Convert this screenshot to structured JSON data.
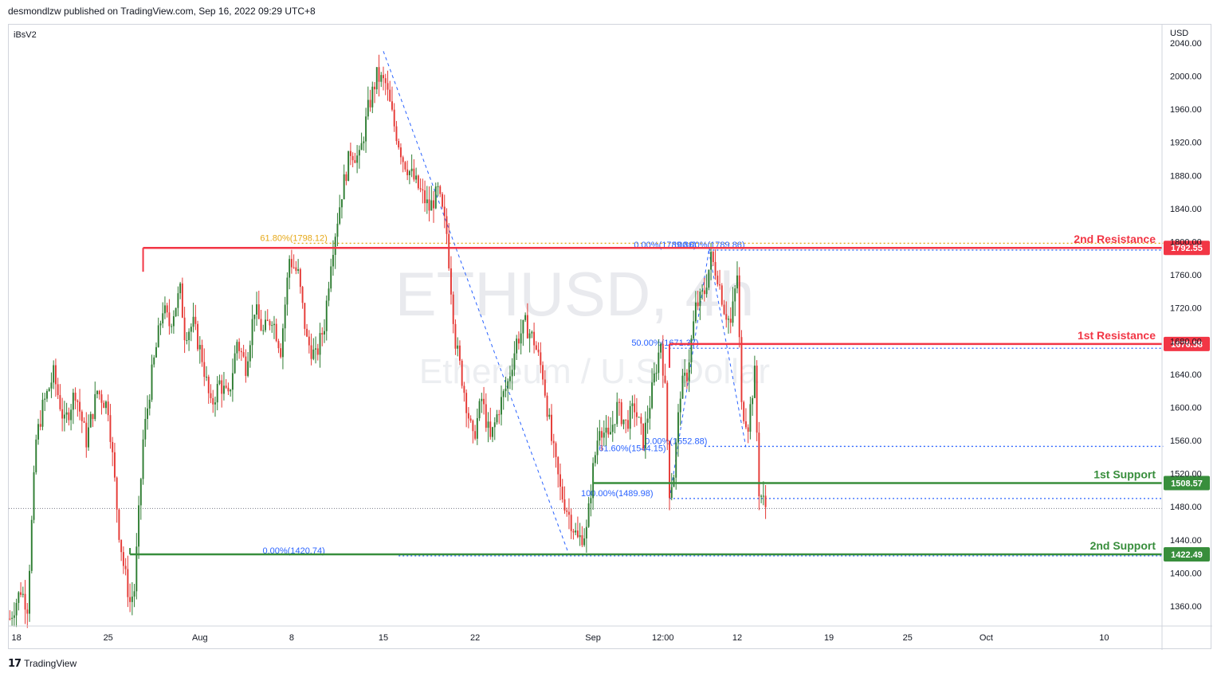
{
  "header": {
    "publisher_line": "desmondlzw published on TradingView.com, Sep 16, 2022 09:29 UTC+8"
  },
  "footer": {
    "brand": "TradingView",
    "logo_icon": "tradingview-logo-icon"
  },
  "chart_data": {
    "type": "candlestick",
    "symbol": "iBsV2",
    "watermark": {
      "line1": "ETHUSD, 4h",
      "line2": "Ethereum / U.S. Dollar"
    },
    "currency": "USD",
    "y_range": [
      1336,
      2062
    ],
    "y_ticks": [
      1360,
      1400,
      1440,
      1480,
      1520,
      1560,
      1600,
      1640,
      1680,
      1720,
      1760,
      1800,
      1840,
      1880,
      1920,
      1960,
      2000,
      2040
    ],
    "x_ticks": [
      {
        "label": "18",
        "bar": 3
      },
      {
        "label": "25",
        "bar": 45
      },
      {
        "label": "Aug",
        "bar": 87
      },
      {
        "label": "8",
        "bar": 129
      },
      {
        "label": "15",
        "bar": 171
      },
      {
        "label": "22",
        "bar": 213
      },
      {
        "label": "Sep",
        "bar": 267
      },
      {
        "label": "12:00",
        "bar": 299
      },
      {
        "label": "12",
        "bar": 333
      },
      {
        "label": "19",
        "bar": 375
      },
      {
        "label": "25",
        "bar": 411
      },
      {
        "label": "Oct",
        "bar": 447
      },
      {
        "label": "10",
        "bar": 501
      }
    ],
    "bars_visible": 528,
    "colors": {
      "up": "#2e7d32",
      "down": "#e53935",
      "resistance": "#f23645",
      "support": "#388e3c",
      "fib": "#2962ff",
      "fib_gold": "#e6a817"
    },
    "price_path": [
      [
        0,
        1345
      ],
      [
        5,
        1380
      ],
      [
        8,
        1360
      ],
      [
        12,
        1560
      ],
      [
        15,
        1600
      ],
      [
        20,
        1640
      ],
      [
        25,
        1580
      ],
      [
        30,
        1620
      ],
      [
        35,
        1560
      ],
      [
        40,
        1620
      ],
      [
        45,
        1600
      ],
      [
        50,
        1450
      ],
      [
        52,
        1410
      ],
      [
        55,
        1365
      ],
      [
        57,
        1380
      ],
      [
        61,
        1560
      ],
      [
        65,
        1640
      ],
      [
        70,
        1720
      ],
      [
        73,
        1700
      ],
      [
        78,
        1740
      ],
      [
        80,
        1690
      ],
      [
        84,
        1700
      ],
      [
        88,
        1660
      ],
      [
        92,
        1600
      ],
      [
        96,
        1630
      ],
      [
        100,
        1610
      ],
      [
        104,
        1680
      ],
      [
        108,
        1650
      ],
      [
        112,
        1720
      ],
      [
        116,
        1690
      ],
      [
        120,
        1710
      ],
      [
        124,
        1670
      ],
      [
        128,
        1780
      ],
      [
        132,
        1760
      ],
      [
        136,
        1680
      ],
      [
        140,
        1660
      ],
      [
        144,
        1700
      ],
      [
        147,
        1780
      ],
      [
        152,
        1860
      ],
      [
        156,
        1910
      ],
      [
        160,
        1900
      ],
      [
        164,
        1960
      ],
      [
        168,
        2000
      ],
      [
        172,
        1990
      ],
      [
        176,
        1940
      ],
      [
        180,
        1900
      ],
      [
        184,
        1880
      ],
      [
        188,
        1860
      ],
      [
        192,
        1840
      ],
      [
        196,
        1860
      ],
      [
        200,
        1810
      ],
      [
        204,
        1680
      ],
      [
        208,
        1620
      ],
      [
        212,
        1560
      ],
      [
        216,
        1610
      ],
      [
        220,
        1560
      ],
      [
        224,
        1600
      ],
      [
        228,
        1630
      ],
      [
        232,
        1680
      ],
      [
        236,
        1700
      ],
      [
        240,
        1680
      ],
      [
        244,
        1640
      ],
      [
        248,
        1560
      ],
      [
        252,
        1500
      ],
      [
        256,
        1470
      ],
      [
        260,
        1440
      ],
      [
        264,
        1450
      ],
      [
        267,
        1525
      ],
      [
        270,
        1580
      ],
      [
        274,
        1560
      ],
      [
        278,
        1600
      ],
      [
        282,
        1580
      ],
      [
        286,
        1600
      ],
      [
        290,
        1560
      ],
      [
        294,
        1620
      ],
      [
        298,
        1680
      ],
      [
        300,
        1620
      ],
      [
        302,
        1500
      ],
      [
        304,
        1520
      ],
      [
        307,
        1620
      ],
      [
        310,
        1640
      ],
      [
        314,
        1720
      ],
      [
        318,
        1740
      ],
      [
        321,
        1780
      ],
      [
        324,
        1760
      ],
      [
        327,
        1720
      ],
      [
        330,
        1700
      ],
      [
        333,
        1760
      ],
      [
        335,
        1600
      ],
      [
        338,
        1580
      ],
      [
        341,
        1640
      ],
      [
        343,
        1500
      ],
      [
        346,
        1480
      ]
    ],
    "levels": [
      {
        "name": "2nd Resistance",
        "price": 1792.55,
        "role": "resistance",
        "label": "1792.55",
        "start_bar": 61
      },
      {
        "name": "1st Resistance",
        "price": 1676.58,
        "role": "resistance",
        "label": "1676.58",
        "start_bar": 302
      },
      {
        "name": "1st Support",
        "price": 1508.57,
        "role": "support",
        "label": "1508.57",
        "start_bar": 267
      },
      {
        "name": "2nd Support",
        "price": 1422.49,
        "role": "support",
        "label": "1422.49",
        "start_bar": 55
      }
    ],
    "fib_labels": [
      {
        "text": "61.80%(1798.12)",
        "price": 1798.12,
        "bar": 130,
        "color": "gold"
      },
      {
        "text": "0.00%(1420.74)",
        "price": 1420.74,
        "bar": 130,
        "color": "blue"
      },
      {
        "text": "100.00%(1789.86)",
        "price": 1789.86,
        "bar": 320,
        "color": "blue"
      },
      {
        "text": "0.00%(1789.86)",
        "price": 1789.86,
        "bar": 300,
        "color": "blue"
      },
      {
        "text": "50.00%(1671.37)",
        "price": 1671.37,
        "bar": 300,
        "color": "blue"
      },
      {
        "text": "0.00%(1552.88)",
        "price": 1552.88,
        "bar": 305,
        "color": "blue"
      },
      {
        "text": "61.60%(1544.15)",
        "price": 1544.15,
        "bar": 285,
        "color": "blue"
      },
      {
        "text": "100.00%(1489.98)",
        "price": 1489.98,
        "bar": 278,
        "color": "blue"
      }
    ],
    "fib_lines": [
      {
        "price": 1798.12,
        "start_bar": 130,
        "end_bar": 528,
        "color": "gold"
      },
      {
        "price": 1789.86,
        "start_bar": 320,
        "end_bar": 528,
        "color": "blue"
      },
      {
        "price": 1671.37,
        "start_bar": 300,
        "end_bar": 528,
        "color": "blue"
      },
      {
        "price": 1552.88,
        "start_bar": 318,
        "end_bar": 528,
        "color": "blue"
      },
      {
        "price": 1489.98,
        "start_bar": 302,
        "end_bar": 528,
        "color": "blue"
      },
      {
        "price": 1420.74,
        "start_bar": 178,
        "end_bar": 528,
        "color": "blue"
      }
    ],
    "trend_lines": [
      {
        "from": [
          171,
          2030
        ],
        "to": [
          256,
          1422
        ]
      },
      {
        "from": [
          302,
          1489
        ],
        "to": [
          320,
          1789
        ]
      },
      {
        "from": [
          320,
          1789
        ],
        "to": [
          337,
          1552
        ]
      }
    ],
    "last_price": 1478
  }
}
